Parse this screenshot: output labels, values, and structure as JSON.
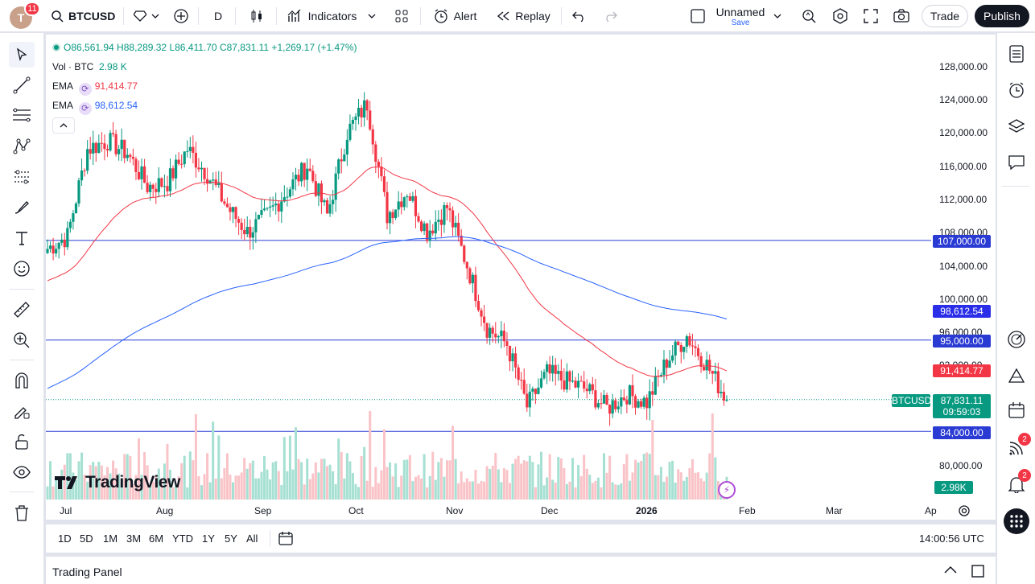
{
  "header": {
    "avatar_initial": "T",
    "avatar_badge": "11",
    "symbol": "BTCUSD",
    "interval": "D",
    "indicators_label": "Indicators",
    "alert_label": "Alert",
    "replay_label": "Replay",
    "layout_name": "Unnamed",
    "layout_save": "Save",
    "trade_label": "Trade",
    "publish_label": "Publish"
  },
  "legend": {
    "ohlc": "O86,561.94 H88,289.32 L86,411.70 C87,831.11 +1,269.17 (+1.47%)",
    "vol_label": "Vol · BTC",
    "vol_value": "2.98 K",
    "ema1_label": "EMA",
    "ema1_value": "91,414.77",
    "ema2_label": "EMA",
    "ema2_value": "98,612.54"
  },
  "price_axis": {
    "ticks": [
      "128,000.00",
      "124,000.00",
      "120,000.00",
      "116,000.00",
      "112,000.00",
      "108,000.00",
      "104,000.00",
      "100,000.00",
      "96,000.00",
      "92,000.00",
      "80,000.00"
    ],
    "labels": {
      "level_107": "107,000.00",
      "ema_slow": "98,612.54",
      "level_95": "95,000.00",
      "ema_fast": "91,414.77",
      "symbol_tag": "BTCUSD",
      "last_price": "87,831.11",
      "countdown": "09:59:03",
      "level_84": "84,000.00",
      "volume": "2.98K"
    }
  },
  "time_axis": {
    "ticks": [
      "Jul",
      "Aug",
      "Sep",
      "Oct",
      "Nov",
      "Dec",
      "2026",
      "Feb",
      "Mar",
      "Ap"
    ]
  },
  "watermark": "TradingView",
  "timeframes": [
    "1D",
    "5D",
    "1M",
    "3M",
    "6M",
    "YTD",
    "1Y",
    "5Y",
    "All"
  ],
  "clock": "14:00:56 UTC",
  "trading_panel": "Trading Panel",
  "right_badges": {
    "ideas": "2",
    "alerts": "2"
  },
  "colors": {
    "up": "#089981",
    "down": "#f23645",
    "ema_fast": "#f23645",
    "ema_slow": "#2962ff",
    "hline": "#2a3bd4"
  },
  "chart_data": {
    "type": "candlestick",
    "ylim": [
      78000,
      130000
    ],
    "horizontal_levels": [
      107000,
      95000,
      84000
    ],
    "x_start": "2025-06-20",
    "last_close": 87831.11,
    "close_series_weekly": [
      106000,
      107500,
      118000,
      119000,
      117500,
      113500,
      114000,
      118000,
      115000,
      111000,
      108000,
      110000,
      113000,
      116000,
      110000,
      120000,
      123500,
      110000,
      113000,
      108000,
      111000,
      104000,
      96500,
      94500,
      87000,
      91000,
      90000,
      89000,
      86800,
      88500,
      87500,
      92500,
      95500,
      92000,
      87831
    ]
  }
}
